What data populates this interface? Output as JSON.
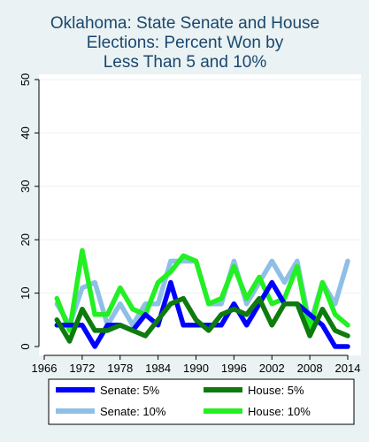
{
  "chart_data": {
    "type": "line",
    "title": [
      "Oklahoma: State Senate and House",
      "Elections: Percent Won by",
      "Less Than 5 and 10%"
    ],
    "xlabel": "",
    "ylabel": "",
    "xlim": [
      1966,
      2014
    ],
    "ylim": [
      0,
      50
    ],
    "xticks": [
      1966,
      1972,
      1978,
      1984,
      1990,
      1996,
      2002,
      2008,
      2014
    ],
    "yticks": [
      0,
      10,
      20,
      30,
      40,
      50
    ],
    "grid": true,
    "legend_position": "bottom",
    "series": [
      {
        "name": "Senate: 5%",
        "color": "#0000ff",
        "x": [
          1968,
          1970,
          1972,
          1974,
          1976,
          1978,
          1980,
          1982,
          1984,
          1986,
          1988,
          1990,
          1992,
          1994,
          1996,
          1998,
          2000,
          2002,
          2004,
          2006,
          2008,
          2010,
          2012,
          2014
        ],
        "values": [
          4,
          4,
          4,
          0,
          4,
          4,
          3,
          6,
          4,
          12,
          4,
          4,
          4,
          4,
          8,
          4,
          8,
          12,
          8,
          8,
          6,
          4,
          0,
          0
        ]
      },
      {
        "name": "Senate: 10%",
        "color": "#8fbfe6",
        "x": [
          1968,
          1970,
          1972,
          1974,
          1976,
          1978,
          1980,
          1982,
          1984,
          1986,
          1988,
          1990,
          1992,
          1994,
          1996,
          1998,
          2000,
          2002,
          2004,
          2006,
          2008,
          2010,
          2012,
          2014
        ],
        "values": [
          8,
          4,
          11,
          12,
          4,
          8,
          4,
          8,
          8,
          16,
          16,
          16,
          8,
          8,
          16,
          8,
          12,
          16,
          12,
          16,
          4,
          12,
          8,
          16
        ]
      },
      {
        "name": "House: 5%",
        "color": "#0e7b0e",
        "x": [
          1968,
          1970,
          1972,
          1974,
          1976,
          1978,
          1980,
          1982,
          1984,
          1986,
          1988,
          1990,
          1992,
          1994,
          1996,
          1998,
          2000,
          2002,
          2004,
          2006,
          2008,
          2010,
          2012,
          2014
        ],
        "values": [
          5,
          1,
          7,
          3,
          3,
          4,
          3,
          2,
          5,
          8,
          9,
          5,
          3,
          6,
          7,
          6,
          9,
          4,
          8,
          8,
          2,
          7,
          3,
          2
        ]
      },
      {
        "name": "House: 10%",
        "color": "#22f022",
        "x": [
          1968,
          1970,
          1972,
          1974,
          1976,
          1978,
          1980,
          1982,
          1984,
          1986,
          1988,
          1990,
          1992,
          1994,
          1996,
          1998,
          2000,
          2002,
          2004,
          2006,
          2008,
          2010,
          2012,
          2014
        ],
        "values": [
          9,
          3,
          18,
          6,
          6,
          11,
          7,
          6,
          12,
          14,
          17,
          16,
          8,
          9,
          15,
          9,
          13,
          8,
          9,
          15,
          3,
          12,
          6,
          4
        ]
      }
    ],
    "legend_order": [
      0,
      2,
      1,
      3
    ]
  }
}
